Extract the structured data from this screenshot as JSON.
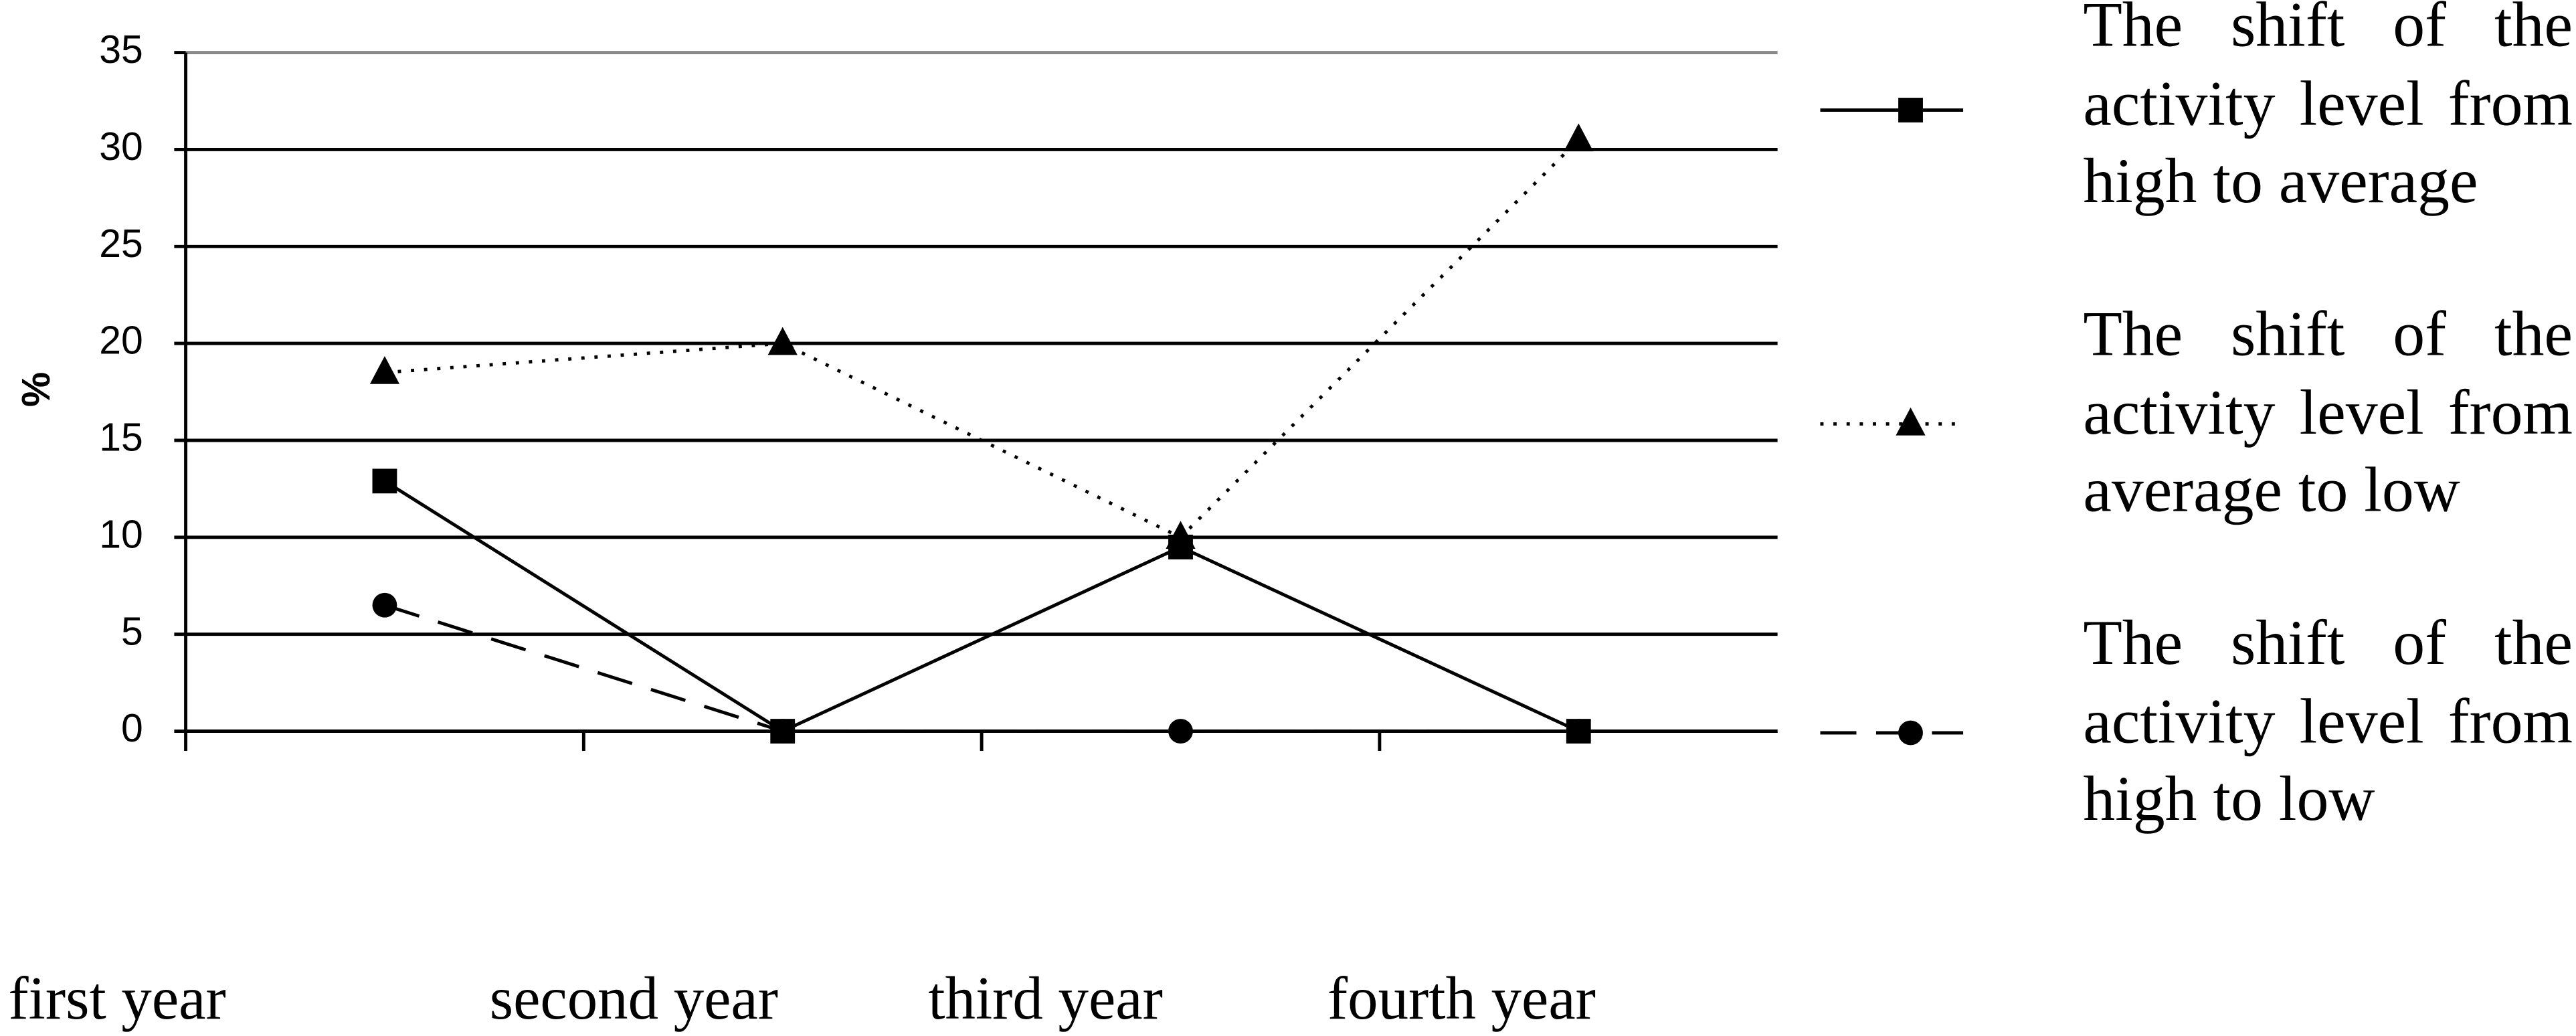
{
  "chart_data": {
    "type": "line",
    "y_label": "%",
    "categories": [
      "first year",
      "second year",
      "third year",
      "fourth year"
    ],
    "series": [
      {
        "name": "The shift of the activity level from high to average",
        "color": "#000000",
        "line_style": "solid",
        "marker": "square",
        "values": [
          12.9,
          0,
          9.5,
          0
        ]
      },
      {
        "name": "The shift of the activity level from average to low",
        "color": "#000000",
        "line_style": "dotted",
        "marker": "triangle",
        "values": [
          18.5,
          20,
          10,
          30.5
        ]
      },
      {
        "name": "The shift of the activity level from high to low",
        "color": "#000000",
        "line_style": "dashed",
        "marker": "circle",
        "values": [
          6.5,
          0,
          0,
          0
        ]
      }
    ],
    "ylim": [
      0,
      35
    ],
    "yticks": [
      0,
      5,
      10,
      15,
      20,
      25,
      30,
      35
    ],
    "grid": true
  }
}
